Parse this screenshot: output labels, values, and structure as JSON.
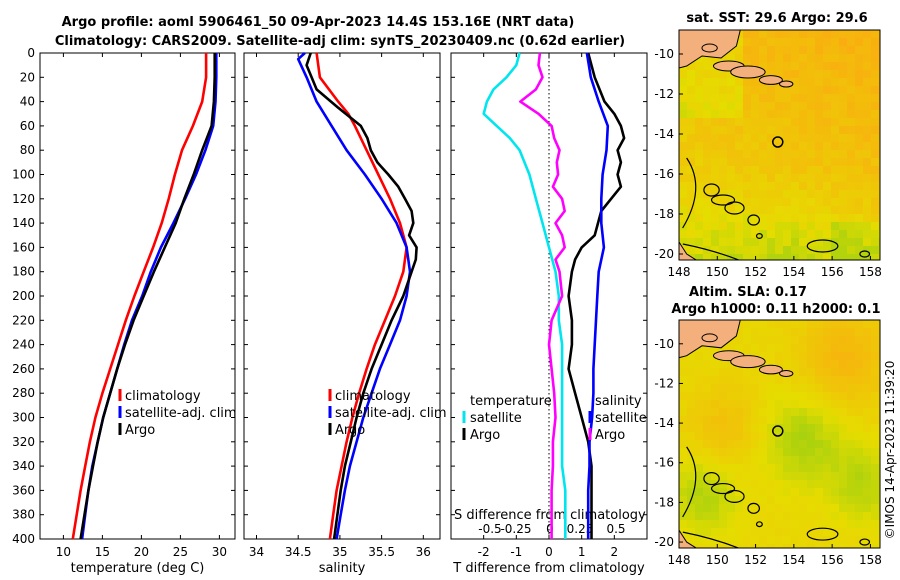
{
  "title": {
    "line1": "Argo profile: aoml 5906461_50 09-Apr-2023 14.4S 153.16E (NRT data)",
    "line2": "Climatology: CARS2009. Satellite-adj clim: synTS_20230409.nc (0.62d earlier)"
  },
  "depth_ticks": [
    "0",
    "20",
    "40",
    "60",
    "80",
    "100",
    "120",
    "140",
    "160",
    "180",
    "200",
    "220",
    "240",
    "260",
    "280",
    "300",
    "320",
    "340",
    "360",
    "380",
    "400"
  ],
  "colors": {
    "climatology": "#ff0000",
    "satellite": "#0000ff",
    "argo": "#000000",
    "cyan": "#00e5ee",
    "magenta": "#ff00ff"
  },
  "chart_data": [
    {
      "type": "line",
      "name": "temperature-panel",
      "xlabel": "temperature (deg C)",
      "xlim": [
        7,
        32
      ],
      "ylim": [
        0,
        400
      ],
      "xticks": [
        "10",
        "15",
        "20",
        "25",
        "30"
      ],
      "xtick_values": [
        10,
        15,
        20,
        25,
        30
      ],
      "legend": {
        "placement": "middle-right",
        "entries": [
          "climatology",
          "satellite-adj. clim",
          "Argo"
        ]
      },
      "series": [
        {
          "name": "climatology",
          "color": "#ff0000",
          "depth": [
            0,
            20,
            40,
            60,
            80,
            100,
            120,
            140,
            160,
            180,
            200,
            220,
            240,
            260,
            280,
            300,
            320,
            340,
            360,
            380,
            400
          ],
          "values": [
            28.3,
            28.3,
            27.8,
            26.6,
            25.2,
            24.3,
            23.5,
            22.6,
            21.5,
            20.3,
            19.1,
            18.0,
            17.0,
            16.0,
            15.0,
            14.1,
            13.4,
            12.8,
            12.2,
            11.7,
            11.2
          ]
        },
        {
          "name": "satellite-adj. clim",
          "color": "#0000ff",
          "depth": [
            0,
            20,
            40,
            60,
            80,
            100,
            120,
            140,
            160,
            180,
            200,
            220,
            240,
            260,
            280,
            300,
            320,
            340,
            360,
            380,
            400
          ],
          "values": [
            29.6,
            29.6,
            29.5,
            29.2,
            28.2,
            27.0,
            25.6,
            24.1,
            22.5,
            21.2,
            20.1,
            18.8,
            17.8,
            16.9,
            16.0,
            15.1,
            14.4,
            13.7,
            13.2,
            12.8,
            12.4
          ]
        },
        {
          "name": "Argo",
          "color": "#000000",
          "depth": [
            0,
            20,
            40,
            60,
            80,
            100,
            120,
            140,
            160,
            180,
            200,
            220,
            240,
            260,
            280,
            300,
            320,
            340,
            360,
            380,
            400
          ],
          "values": [
            29.4,
            29.4,
            29.3,
            29.0,
            27.8,
            26.7,
            25.5,
            24.4,
            23.0,
            21.6,
            20.3,
            19.0,
            17.9,
            16.9,
            16.0,
            15.1,
            14.4,
            13.8,
            13.2,
            12.7,
            12.2
          ]
        }
      ]
    },
    {
      "type": "line",
      "name": "salinity-panel",
      "xlabel": "salinity",
      "xlim": [
        33.85,
        36.2
      ],
      "ylim": [
        0,
        400
      ],
      "xticks": [
        "34",
        "34.5",
        "35",
        "35.5",
        "36"
      ],
      "xtick_values": [
        34,
        34.5,
        35,
        35.5,
        36
      ],
      "legend": {
        "placement": "middle-right",
        "entries": [
          "climatology",
          "satellite-adj. clim",
          "Argo"
        ]
      },
      "series": [
        {
          "name": "climatology",
          "color": "#ff0000",
          "depth": [
            0,
            20,
            40,
            50,
            60,
            80,
            100,
            120,
            140,
            160,
            180,
            200,
            220,
            240,
            260,
            280,
            300,
            320,
            340,
            360,
            380,
            400
          ],
          "values": [
            34.72,
            34.76,
            34.98,
            35.1,
            35.18,
            35.32,
            35.46,
            35.6,
            35.72,
            35.8,
            35.76,
            35.66,
            35.54,
            35.42,
            35.32,
            35.23,
            35.15,
            35.08,
            35.02,
            34.96,
            34.92,
            34.88
          ]
        },
        {
          "name": "satellite-adj. clim",
          "color": "#0000ff",
          "depth": [
            0,
            5,
            20,
            40,
            60,
            80,
            100,
            120,
            140,
            160,
            180,
            200,
            220,
            240,
            260,
            280,
            300,
            320,
            340,
            360,
            380,
            400
          ],
          "values": [
            34.58,
            34.5,
            34.6,
            34.72,
            34.9,
            35.08,
            35.3,
            35.5,
            35.68,
            35.8,
            35.84,
            35.8,
            35.72,
            35.6,
            35.48,
            35.38,
            35.28,
            35.2,
            35.12,
            35.06,
            35.01,
            34.96
          ]
        },
        {
          "name": "Argo",
          "color": "#000000",
          "depth": [
            0,
            10,
            20,
            30,
            45,
            60,
            70,
            80,
            90,
            100,
            110,
            120,
            130,
            140,
            150,
            160,
            170,
            180,
            200,
            220,
            240,
            260,
            280,
            300,
            320,
            340,
            360,
            380,
            400
          ],
          "values": [
            34.65,
            34.6,
            34.66,
            34.72,
            34.98,
            35.25,
            35.33,
            35.37,
            35.45,
            35.58,
            35.7,
            35.78,
            35.86,
            35.88,
            35.83,
            35.92,
            35.91,
            35.86,
            35.76,
            35.62,
            35.5,
            35.38,
            35.28,
            35.2,
            35.13,
            35.06,
            35.01,
            34.97,
            34.93
          ]
        }
      ]
    },
    {
      "type": "line",
      "name": "difference-panel",
      "xlabel": "T difference from climatology",
      "xlim": [
        -3,
        3
      ],
      "ylim": [
        0,
        400
      ],
      "xticks": [
        "-2",
        "-1",
        "0",
        "1",
        "2"
      ],
      "xtick_values": [
        -2,
        -1,
        0,
        1,
        2
      ],
      "secondary_xlabel": "S difference from climatology",
      "secondary_xticks": [
        "-0.5",
        "-0.25",
        "0",
        "0.25",
        "0.5"
      ],
      "secondary_xtick_values": [
        -0.5,
        -0.25,
        0,
        0.25,
        0.5
      ],
      "secondary_xlim": [
        -0.75,
        0.75
      ],
      "legend": {
        "placement": "middle",
        "left_title": "temperature",
        "right_title": "salinity",
        "left_entries": [
          "satellite",
          "Argo"
        ],
        "right_entries": [
          "satellite",
          "Argo"
        ]
      },
      "series": [
        {
          "name": "T satellite",
          "color": "#00e5ee",
          "axis": "T",
          "depth": [
            0,
            10,
            20,
            30,
            40,
            50,
            60,
            70,
            80,
            100,
            120,
            140,
            160,
            180,
            200,
            220,
            240,
            260,
            280,
            300,
            320,
            340,
            360,
            380,
            400
          ],
          "values": [
            -0.9,
            -1.0,
            -1.3,
            -1.7,
            -1.9,
            -2.0,
            -1.6,
            -1.2,
            -0.9,
            -0.6,
            -0.4,
            -0.2,
            0.0,
            0.2,
            0.3,
            0.3,
            0.4,
            0.4,
            0.4,
            0.4,
            0.4,
            0.4,
            0.5,
            0.5,
            0.5
          ]
        },
        {
          "name": "T Argo",
          "color": "#000000",
          "axis": "T",
          "depth": [
            0,
            20,
            40,
            50,
            60,
            70,
            80,
            90,
            100,
            110,
            120,
            130,
            140,
            150,
            160,
            170,
            180,
            200,
            220,
            240,
            260,
            280,
            300,
            320,
            340,
            360,
            380,
            400
          ],
          "values": [
            1.2,
            1.4,
            1.7,
            2.0,
            2.2,
            2.3,
            2.1,
            2.2,
            2.1,
            2.2,
            1.9,
            1.6,
            1.5,
            1.4,
            1.0,
            0.8,
            0.7,
            0.6,
            0.7,
            0.7,
            0.6,
            0.8,
            1.0,
            1.2,
            1.3,
            1.3,
            1.3,
            1.3
          ]
        },
        {
          "name": "S satellite",
          "color": "#0000ff",
          "axis": "S",
          "depth": [
            0,
            20,
            40,
            60,
            80,
            100,
            120,
            140,
            160,
            180,
            200,
            220,
            240,
            260,
            280,
            300,
            320,
            340,
            360,
            380,
            400
          ],
          "values": [
            0.29,
            0.32,
            0.38,
            0.45,
            0.44,
            0.41,
            0.4,
            0.4,
            0.42,
            0.38,
            0.37,
            0.36,
            0.35,
            0.34,
            0.34,
            0.33,
            0.31,
            0.31,
            0.3,
            0.3,
            0.3
          ]
        },
        {
          "name": "S Argo",
          "color": "#ff00ff",
          "axis": "S",
          "depth": [
            0,
            10,
            20,
            30,
            40,
            50,
            60,
            70,
            80,
            90,
            100,
            110,
            120,
            130,
            140,
            150,
            160,
            170,
            180,
            200,
            220,
            240,
            260,
            280,
            300,
            320,
            340,
            360,
            380,
            400
          ],
          "values": [
            -0.07,
            -0.08,
            -0.05,
            -0.1,
            -0.22,
            -0.08,
            0.02,
            0.04,
            0.08,
            0.06,
            0.07,
            0.03,
            0.1,
            0.12,
            0.05,
            0.1,
            0.12,
            0.05,
            0.08,
            0.1,
            0.02,
            0.0,
            0.02,
            0.04,
            0.05,
            0.03,
            0.03,
            0.02,
            0.02,
            0.02
          ]
        }
      ]
    }
  ],
  "maps": [
    {
      "name": "sst-map",
      "title": "sat. SST: 29.6 Argo: 29.6",
      "title2": "",
      "xticks": [
        "148",
        "150",
        "152",
        "154",
        "156",
        "158"
      ],
      "xtick_values": [
        148,
        150,
        152,
        154,
        156,
        158
      ],
      "yticks": [
        "-10",
        "-12",
        "-14",
        "-16",
        "-18",
        "-20"
      ],
      "ytick_values": [
        -10,
        -12,
        -14,
        -16,
        -18,
        -20
      ],
      "lon_range": [
        148,
        158.5
      ],
      "lat_range": [
        -8.8,
        -20.3
      ],
      "profile": {
        "lon": 153.16,
        "lat": -14.4
      }
    },
    {
      "name": "sla-map",
      "title": "Altim. SLA: 0.17",
      "title2": "Argo h1000: 0.11 h2000: 0.1",
      "xticks": [
        "148",
        "150",
        "152",
        "154",
        "156",
        "158"
      ],
      "xtick_values": [
        148,
        150,
        152,
        154,
        156,
        158
      ],
      "yticks": [
        "-10",
        "-12",
        "-14",
        "-16",
        "-18",
        "-20"
      ],
      "ytick_values": [
        -10,
        -12,
        -14,
        -16,
        -18,
        -20
      ],
      "lon_range": [
        148,
        158.5
      ],
      "lat_range": [
        -8.8,
        -20.3
      ],
      "profile": {
        "lon": 153.16,
        "lat": -14.4
      }
    }
  ],
  "watermark": "©IMOS 14-Apr-2023 11:39:20"
}
